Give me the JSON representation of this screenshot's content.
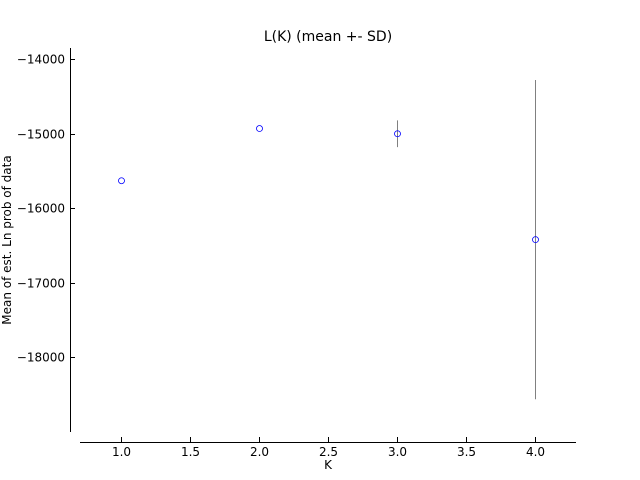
{
  "chart_data": {
    "type": "scatter",
    "title": "L(K) (mean +- SD)",
    "xlabel": "K",
    "ylabel": "Mean of est. Ln prob of data",
    "xlim": [
      0.7,
      4.3
    ],
    "ylim": [
      -19000,
      -13850
    ],
    "xticks": [
      1.0,
      1.5,
      2.0,
      2.5,
      3.0,
      3.5,
      4.0
    ],
    "xtick_labels": [
      "1.0",
      "1.5",
      "2.0",
      "2.5",
      "3.0",
      "3.5",
      "4.0"
    ],
    "yticks": [
      -14000,
      -15000,
      -16000,
      -17000,
      -18000
    ],
    "ytick_labels": [
      "−14000",
      "−15000",
      "−16000",
      "−17000",
      "−18000"
    ],
    "grid": false,
    "series": [
      {
        "name": "L(K)",
        "x": [
          1,
          2,
          3,
          4
        ],
        "mean": [
          -15630,
          -14930,
          -15000,
          -16420
        ],
        "sd": [
          0,
          0,
          180,
          2140
        ]
      }
    ],
    "colors": {
      "marker": "#0000ff",
      "errorbar": "#808080",
      "axis": "#000000"
    }
  }
}
